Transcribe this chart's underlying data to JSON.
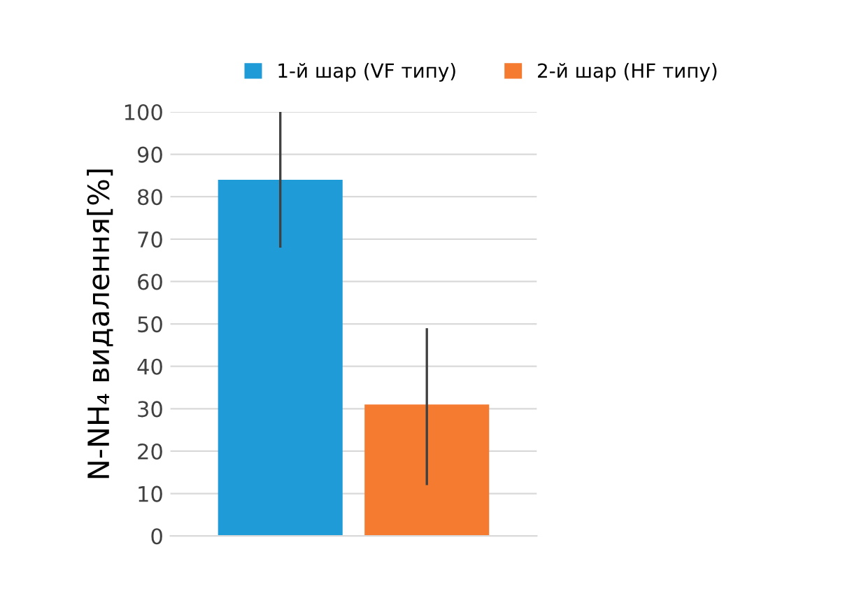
{
  "chart_data": {
    "type": "bar",
    "ylabel": "N-NH₄ видалення[%]",
    "categories": [
      null
    ],
    "series": [
      {
        "name": "1-й шар (VF типу)",
        "color": "#1f9bd7",
        "values": [
          84
        ],
        "errors": [
          [
            68,
            100
          ]
        ]
      },
      {
        "name": "2-й шар (HF типу)",
        "color": "#f47b30",
        "values": [
          31
        ],
        "errors": [
          [
            12,
            49
          ]
        ]
      }
    ],
    "ylim": [
      0,
      100
    ],
    "yticks": [
      0,
      10,
      20,
      30,
      40,
      50,
      60,
      70,
      80,
      90,
      100
    ],
    "grid": "y",
    "legend": "top"
  }
}
